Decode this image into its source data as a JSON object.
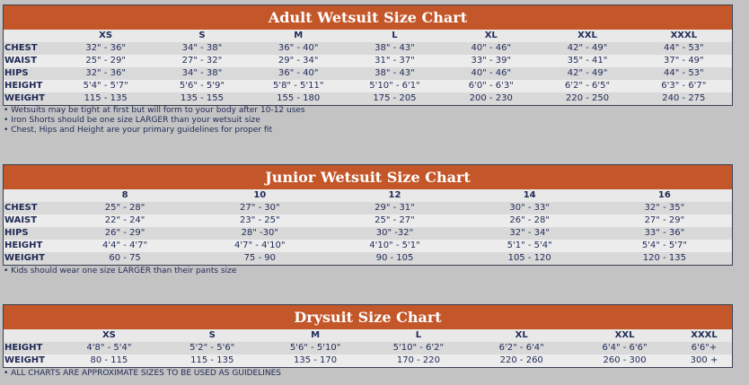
{
  "adult": {
    "title": "Adult Wetsuit Size Chart",
    "sizes": [
      "XS",
      "S",
      "M",
      "L",
      "XL",
      "XXL",
      "XXXL"
    ],
    "rows": [
      {
        "label": "CHEST",
        "values": [
          "32\" - 36\"",
          "34\" - 38\"",
          "36\" - 40\"",
          "38\" - 43\"",
          "40\" - 46\"",
          "42\" - 49\"",
          "44\" - 53\""
        ]
      },
      {
        "label": "WAIST",
        "values": [
          "25\" - 29\"",
          "27\" - 32\"",
          "29\" - 34\"",
          "31\" - 37\"",
          "33\" - 39\"",
          "35\" - 41\"",
          "37\" - 49\""
        ]
      },
      {
        "label": "HIPS",
        "values": [
          "32\" - 36\"",
          "34\" - 38\"",
          "36\" - 40\"",
          "38\" - 43\"",
          "40\" - 46\"",
          "42\" - 49\"",
          "44\" - 53\""
        ]
      },
      {
        "label": "HEIGHT",
        "values": [
          "5'4\" - 5'7\"",
          "5'6\" - 5'9\"",
          "5'8\" - 5'11\"",
          "5'10\" - 6'1\"",
          "6'0\" - 6'3\"",
          "6'2\" - 6'5\"",
          "6'3\" - 6'7\""
        ]
      },
      {
        "label": "WEIGHT",
        "values": [
          "115 - 135",
          "135 - 155",
          "155 - 180",
          "175 - 205",
          "200 - 230",
          "220 - 250",
          "240 - 275"
        ]
      }
    ],
    "notes": [
      "Wetsuits may be tight at first but will form to your body after 10-12 uses",
      "Iron Shorts should be one size LARGER than your wetsuit size",
      "Chest, Hips and Height are your primary guidelines for proper fit"
    ]
  },
  "junior": {
    "title": "Junior Wetsuit Size Chart",
    "sizes": [
      "8",
      "10",
      "12",
      "14",
      "16"
    ],
    "rows": [
      {
        "label": "CHEST",
        "values": [
          "25\" - 28\"",
          "27\" - 30\"",
          "29\" - 31\"",
          "30\" - 33\"",
          "32\" - 35\""
        ]
      },
      {
        "label": "WAIST",
        "values": [
          "22\" - 24\"",
          "23\" - 25\"",
          "25\" - 27\"",
          "26\" - 28\"",
          "27\" - 29\""
        ]
      },
      {
        "label": "HIPS",
        "values": [
          "26\" - 29\"",
          "28\" -30\"",
          "30\" -32\"",
          "32\" - 34\"",
          "33\" - 36\""
        ]
      },
      {
        "label": "HEIGHT",
        "values": [
          "4'4\" - 4'7\"",
          "4'7\" - 4'10\"",
          "4'10\" - 5'1\"",
          "5'1\" - 5'4\"",
          "5'4\" - 5'7\""
        ]
      },
      {
        "label": "WEIGHT",
        "values": [
          "60 - 75",
          "75 - 90",
          "90 - 105",
          "105 - 120",
          "120 - 135"
        ]
      }
    ],
    "notes": [
      "Kids should wear one size LARGER than their pants size"
    ]
  },
  "drysuit": {
    "title": "Drysuit Size Chart",
    "sizes": [
      "XS",
      "S",
      "M",
      "L",
      "XL",
      "XXL",
      "XXXL"
    ],
    "rows": [
      {
        "label": "HEIGHT",
        "values": [
          "4'8\" - 5'4\"",
          "5'2\" - 5'6\"",
          "5'6\" - 5'10\"",
          "5'10\" - 6'2\"",
          "6'2\" - 6'4\"",
          "6'4\" - 6'6\"",
          "6'6\"+"
        ]
      },
      {
        "label": "WEIGHT",
        "values": [
          "80 - 115",
          "115 - 135",
          "135 - 170",
          "170 - 220",
          "220 - 260",
          "260 - 300",
          "300 +"
        ]
      }
    ],
    "notes": [
      "ALL CHARTS ARE APPROXIMATE SIZES TO BE USED AS GUIDELINES"
    ]
  },
  "colors": {
    "header": "#c4572a",
    "text": "#1f2a55",
    "background": "#c3c3c3"
  }
}
